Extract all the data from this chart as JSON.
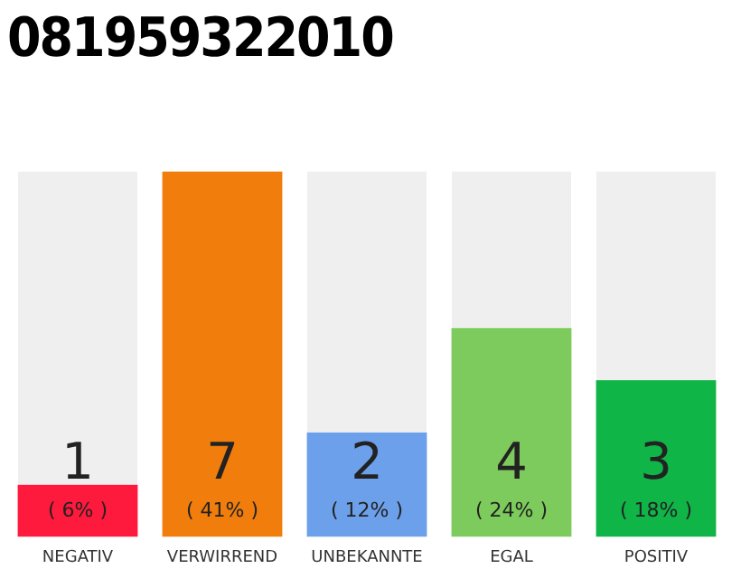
{
  "chart_data": {
    "type": "bar",
    "title": "081959322010",
    "categories": [
      "NEGATIV",
      "VERWIRREND",
      "UNBEKANNTE",
      "EGAL",
      "POSITIV"
    ],
    "values": [
      1,
      7,
      2,
      4,
      3
    ],
    "colors": [
      "#fe1a3c",
      "#f07d0c",
      "#6da0ea",
      "#7dcb5c",
      "#10b548"
    ],
    "data_labels": true,
    "annotations": [
      "( 6% )",
      "( 41% )",
      "( 12% )",
      "( 24% )",
      "( 18% )"
    ],
    "grid": false,
    "legend": false
  }
}
